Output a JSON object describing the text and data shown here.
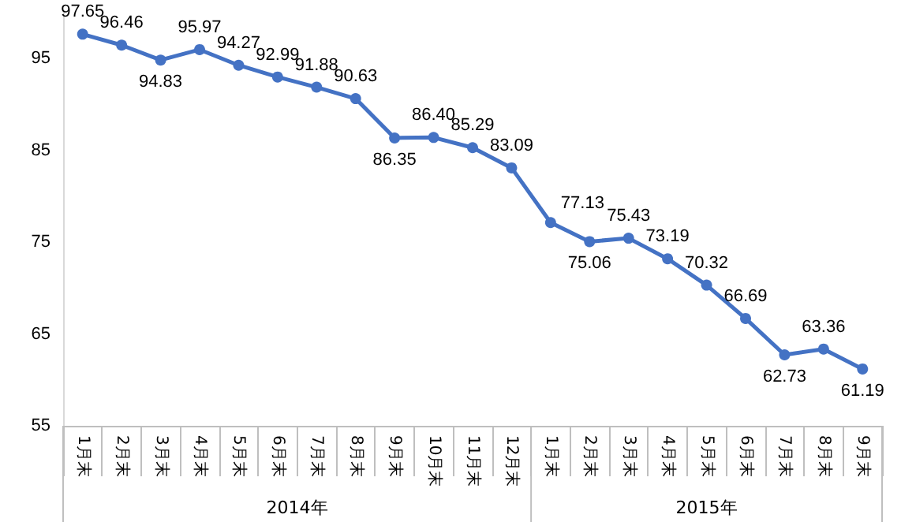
{
  "chart_data": {
    "type": "line",
    "categories": [
      "1月末",
      "2月末",
      "3月末",
      "4月末",
      "5月末",
      "6月末",
      "7月末",
      "8月末",
      "9月末",
      "10月末",
      "11月末",
      "12月末",
      "1月末",
      "2月末",
      "3月末",
      "4月末",
      "5月末",
      "6月末",
      "7月末",
      "8月末",
      "9月末"
    ],
    "values": [
      97.65,
      96.46,
      94.83,
      95.97,
      94.27,
      92.99,
      91.88,
      90.63,
      86.35,
      86.4,
      85.29,
      83.09,
      77.13,
      75.06,
      75.43,
      73.19,
      70.32,
      66.69,
      62.73,
      63.36,
      61.19
    ],
    "value_labels": [
      "97.65",
      "96.46",
      "94.83",
      "95.97",
      "94.27",
      "92.99",
      "91.88",
      "90.63",
      "86.35",
      "86.40",
      "85.29",
      "83.09",
      "77.13",
      "75.06",
      "75.43",
      "73.19",
      "70.32",
      "66.69",
      "62.73",
      "63.36",
      "61.19"
    ],
    "color": "#4472c4",
    "marker": "circle",
    "grid": false,
    "ylim": [
      55,
      100
    ],
    "yticks": [
      55,
      65,
      75,
      85,
      95
    ],
    "annotations": [
      "2014年",
      "2015年"
    ]
  }
}
